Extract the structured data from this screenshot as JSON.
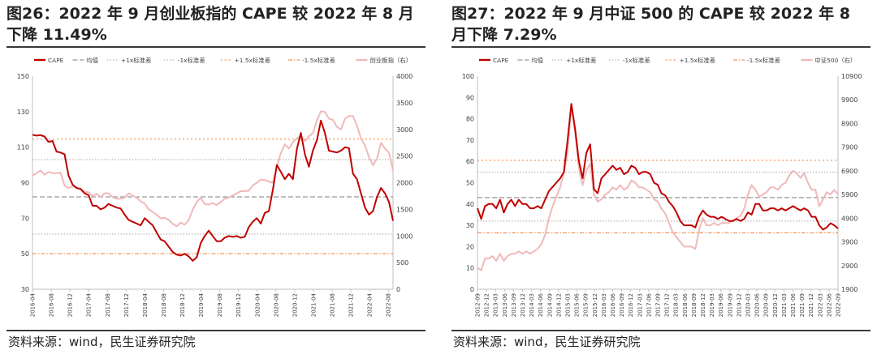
{
  "panels": [
    {
      "title": "图26：2022 年 9 月创业板指的 CAPE 较 2022 年 8 月下降 11.49%",
      "source": "资料来源：wind，民生证券研究院",
      "legend": {
        "cape": "CAPE",
        "mean": "均值",
        "plus1": "+1x标准差",
        "minus1": "-1x标准差",
        "plus15": "+1.5x标准差",
        "minus15": "-1.5x标准差",
        "index": "创业板指（右）"
      }
    },
    {
      "title": "图27：2022 年 9 月中证 500 的 CAPE 较 2022 年 8 月下降 7.29%",
      "source": "资料来源：wind，民生证券研究院",
      "legend": {
        "cape": "CAPE",
        "mean": "均值",
        "plus1": "+1x标准差",
        "minus1": "-1x标准差",
        "plus15": "+1.5x标准差",
        "minus15": "-1.5x标准差",
        "index": "中证500（右）"
      }
    }
  ],
  "colors": {
    "cape": "#c00000",
    "index": "#f0b9b9",
    "mean": "#7f7f7f",
    "plus1": "#a6a6a6",
    "minus1": "#a6a6a6",
    "plus15": "#ed7d31",
    "minus15": "#ed7d31",
    "axis": "#bfbfbf",
    "text": "#404040"
  },
  "chart_data": [
    {
      "type": "line",
      "title": "",
      "xlabel": "",
      "ylabel": "",
      "ylim": [
        30,
        150
      ],
      "y_ticks": [
        30,
        50,
        70,
        90,
        110,
        130,
        150
      ],
      "y2lim": [
        0,
        4000
      ],
      "y2_ticks": [
        0,
        500,
        1000,
        1500,
        2000,
        2500,
        3000,
        3500,
        4000
      ],
      "x_ticks": [
        "2016-04",
        "2016-08",
        "2016-12",
        "2017-04",
        "2017-08",
        "2017-12",
        "2018-04",
        "2018-08",
        "2018-12",
        "2019-04",
        "2019-08",
        "2019-12",
        "2020-04",
        "2020-08",
        "2020-12",
        "2021-04",
        "2021-08",
        "2021-12",
        "2022-04",
        "2022-08"
      ],
      "x_start": "2016-04",
      "x_end": "2022-09",
      "mean": 82,
      "plus1": 103,
      "minus1": 61,
      "plus15": 114.5,
      "minus15": 50,
      "series": [
        {
          "name": "CAPE",
          "axis": "left",
          "values": [
            117,
            116.5,
            116.8,
            116,
            113,
            113.5,
            107.5,
            107,
            106,
            94,
            89,
            87,
            86.5,
            84,
            83,
            77,
            77,
            75,
            76,
            78,
            77,
            76,
            75.5,
            72,
            69,
            68,
            67,
            66,
            70,
            68,
            66,
            62,
            58,
            57,
            54,
            51,
            49.5,
            49,
            50,
            48.5,
            46,
            48,
            56,
            60,
            63,
            60,
            57,
            57,
            59,
            60,
            59.5,
            60,
            59,
            59.5,
            65,
            68,
            70,
            67,
            73,
            74,
            86,
            100,
            96,
            92,
            95,
            92,
            109,
            118,
            106,
            99,
            108,
            114,
            125,
            118,
            108,
            107.5,
            107,
            108,
            110,
            109.5,
            95,
            92,
            84,
            76,
            72,
            74,
            82,
            87,
            84,
            79,
            68.5
          ]
        },
        {
          "name": "创业板指（右）",
          "axis": "right",
          "values": [
            2130,
            2180,
            2230,
            2150,
            2200,
            2180,
            2180,
            2190,
            1950,
            1900,
            1930,
            1910,
            1880,
            1830,
            1820,
            1750,
            1790,
            1730,
            1800,
            1800,
            1730,
            1700,
            1700,
            1720,
            1800,
            1760,
            1720,
            1650,
            1610,
            1500,
            1450,
            1400,
            1330,
            1340,
            1300,
            1230,
            1180,
            1250,
            1210,
            1300,
            1490,
            1640,
            1720,
            1600,
            1590,
            1620,
            1580,
            1640,
            1700,
            1720,
            1760,
            1800,
            1840,
            1840,
            1850,
            1950,
            2000,
            2060,
            2050,
            2020,
            2000,
            2300,
            2560,
            2720,
            2640,
            2760,
            2830,
            2880,
            2780,
            2870,
            2930,
            3170,
            3340,
            3330,
            3200,
            3180,
            3050,
            3000,
            3200,
            3250,
            3250,
            3070,
            2830,
            2700,
            2480,
            2330,
            2450,
            2750,
            2640,
            2560,
            2230
          ]
        }
      ]
    },
    {
      "type": "line",
      "title": "",
      "xlabel": "",
      "ylabel": "",
      "ylim": [
        0,
        100
      ],
      "y_ticks": [
        0,
        10,
        20,
        30,
        40,
        50,
        60,
        70,
        80,
        90,
        100
      ],
      "y2lim": [
        1900,
        10900
      ],
      "y2_ticks": [
        1900,
        2900,
        3900,
        4900,
        5900,
        6900,
        7900,
        8900,
        9900,
        10900
      ],
      "x_ticks": [
        "2012-09",
        "2012-12",
        "2013-03",
        "2013-06",
        "2013-09",
        "2013-12",
        "2014-03",
        "2014-06",
        "2014-09",
        "2014-12",
        "2015-03",
        "2015-06",
        "2015-09",
        "2015-12",
        "2016-03",
        "2016-06",
        "2016-09",
        "2016-12",
        "2017-03",
        "2017-06",
        "2017-09",
        "2017-12",
        "2018-03",
        "2018-06",
        "2018-09",
        "2018-12",
        "2019-03",
        "2019-06",
        "2019-09",
        "2019-12",
        "2020-03",
        "2020-06",
        "2020-09",
        "2020-12",
        "2021-03",
        "2021-06",
        "2021-09",
        "2021-12",
        "2022-03",
        "2022-06",
        "2022-09"
      ],
      "x_start": "2012-09",
      "x_end": "2022-09",
      "mean": 43,
      "plus1": 55,
      "minus1": 32,
      "plus15": 60.5,
      "minus15": 26.5,
      "series": [
        {
          "name": "CAPE",
          "axis": "left",
          "values": [
            38,
            33,
            39,
            40,
            40,
            38,
            42,
            36,
            40,
            42,
            39,
            42,
            40,
            40,
            38,
            38,
            39,
            38,
            42,
            46,
            48,
            50,
            52,
            55,
            70,
            87,
            75,
            60,
            52,
            64,
            68,
            47,
            45,
            52,
            54,
            56,
            58,
            56,
            57,
            54,
            55,
            58,
            57,
            54,
            55,
            55,
            54,
            50,
            49,
            45,
            44,
            41,
            39,
            36,
            32,
            30,
            30,
            30,
            29,
            34,
            37,
            35,
            34,
            34,
            33,
            34,
            33,
            32,
            32,
            33,
            32,
            33,
            36,
            35,
            40,
            40,
            37,
            37,
            38,
            38,
            37,
            38,
            37,
            38,
            39,
            38,
            37,
            38,
            37,
            34,
            34,
            30,
            28,
            29,
            31,
            30,
            28.5
          ]
        },
        {
          "name": "中证500（右）",
          "axis": "right",
          "values": [
            2800,
            2700,
            3200,
            3200,
            3300,
            3100,
            3400,
            3100,
            3300,
            3400,
            3400,
            3500,
            3400,
            3500,
            3400,
            3500,
            3600,
            3800,
            4200,
            4900,
            5400,
            5800,
            6200,
            6800,
            7700,
            9700,
            8500,
            7000,
            6300,
            6900,
            7200,
            5900,
            5600,
            5700,
            5900,
            6000,
            6200,
            6100,
            6300,
            6100,
            6200,
            6500,
            6400,
            6200,
            6200,
            6100,
            6000,
            5700,
            5600,
            5300,
            5100,
            4700,
            4300,
            4100,
            3900,
            3700,
            3700,
            3700,
            3600,
            4400,
            4900,
            4600,
            4600,
            4700,
            4600,
            4700,
            4700,
            4700,
            4800,
            4900,
            5000,
            5300,
            5900,
            6300,
            6100,
            5800,
            5900,
            6000,
            6200,
            6200,
            6100,
            6300,
            6400,
            6700,
            6900,
            6800,
            6600,
            6800,
            6400,
            6100,
            6100,
            5400,
            5700,
            6000,
            5900,
            6100,
            5900
          ]
        }
      ]
    }
  ]
}
